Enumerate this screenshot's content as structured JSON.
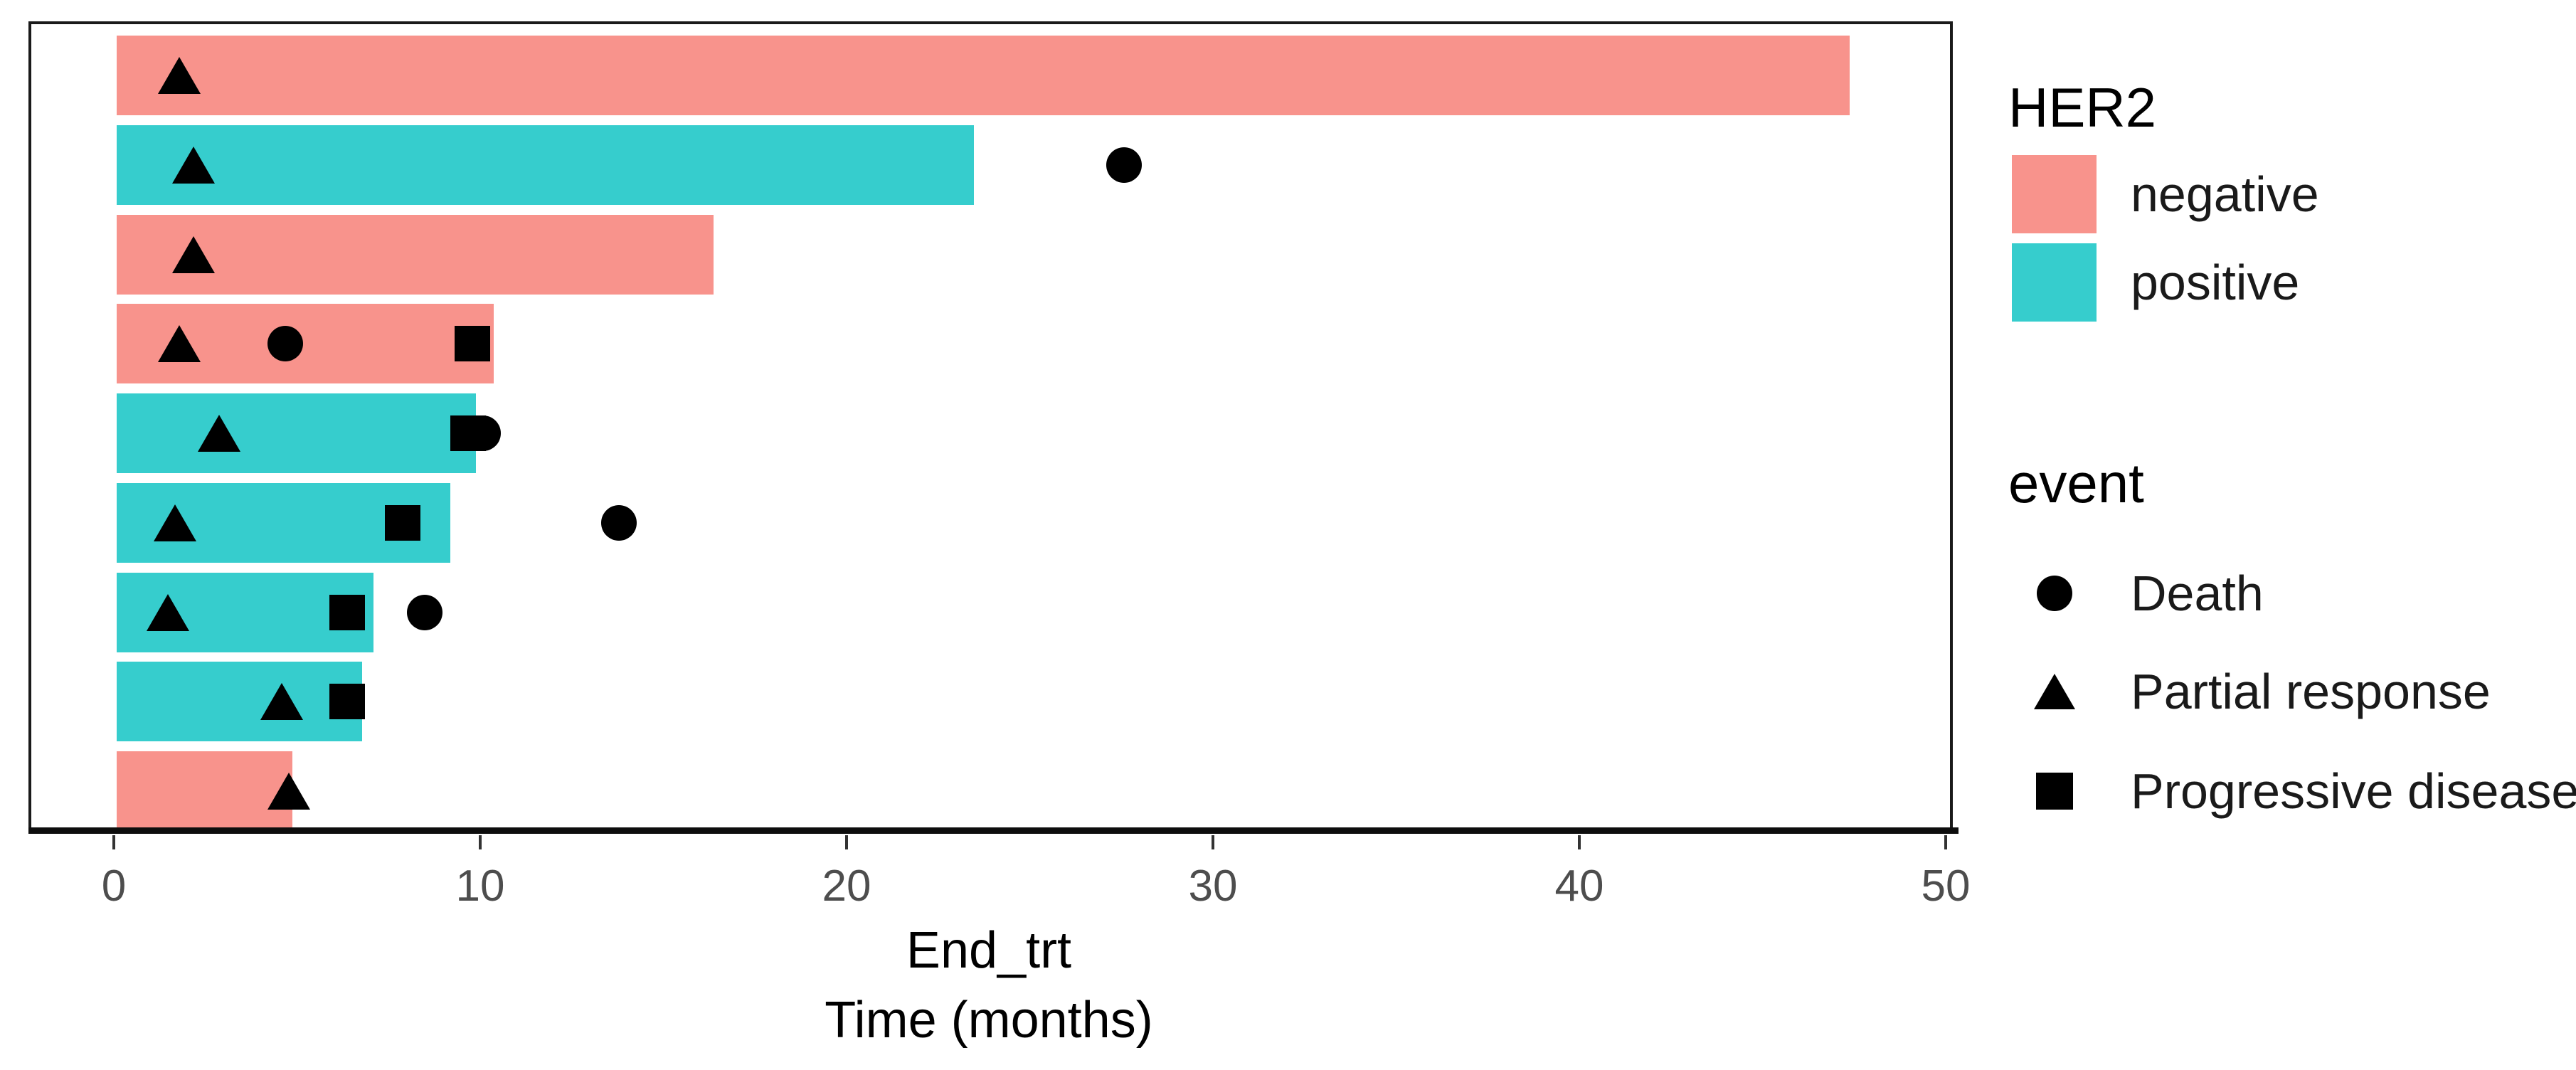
{
  "figure": {
    "x_axis": {
      "title_line1": "End_trt",
      "title_line2": "Time (months)",
      "tick_labels": [
        "0",
        "10",
        "20",
        "30",
        "40",
        "50"
      ]
    },
    "legend": {
      "her2": {
        "title": "HER2",
        "items": [
          {
            "label": "negative",
            "color": "#F8938C"
          },
          {
            "label": "positive",
            "color": "#36CDCD"
          }
        ]
      },
      "event": {
        "title": "event",
        "items": [
          {
            "label": "Death",
            "marker": "circle"
          },
          {
            "label": "Partial response",
            "marker": "triangle"
          },
          {
            "label": "Progressive disease",
            "marker": "square"
          }
        ]
      }
    }
  },
  "chart_data": {
    "type": "bar",
    "orientation": "horizontal",
    "title": "",
    "xlabel": "End_trt — Time (months)",
    "ylabel": "",
    "xlim": [
      0,
      50
    ],
    "x_ticks": [
      0,
      10,
      20,
      30,
      40,
      50
    ],
    "grid": false,
    "legend_position": "right",
    "bar_color_by": "HER2",
    "colors": {
      "negative": "#F8938C",
      "positive": "#36CDCD",
      "event_marker": "#000000"
    },
    "marker_shapes": {
      "Death": "circle",
      "Partial response": "triangle",
      "Progressive disease": "square"
    },
    "patients": [
      {
        "her2": "negative",
        "end_trt": 47.3,
        "events": [
          {
            "event": "Partial response",
            "time": 1.7
          }
        ]
      },
      {
        "her2": "positive",
        "end_trt": 23.4,
        "events": [
          {
            "event": "Partial response",
            "time": 2.1
          },
          {
            "event": "Death",
            "time": 27.5
          }
        ]
      },
      {
        "her2": "negative",
        "end_trt": 16.3,
        "events": [
          {
            "event": "Partial response",
            "time": 2.1
          }
        ]
      },
      {
        "her2": "negative",
        "end_trt": 10.3,
        "events": [
          {
            "event": "Partial response",
            "time": 1.7
          },
          {
            "event": "Death",
            "time": 4.6
          },
          {
            "event": "Progressive disease",
            "time": 9.7
          }
        ]
      },
      {
        "her2": "positive",
        "end_trt": 9.8,
        "events": [
          {
            "event": "Partial response",
            "time": 2.8
          },
          {
            "event": "Progressive disease",
            "time": 9.6
          },
          {
            "event": "Death",
            "time": 10.0
          }
        ]
      },
      {
        "her2": "positive",
        "end_trt": 9.1,
        "events": [
          {
            "event": "Partial response",
            "time": 1.6
          },
          {
            "event": "Progressive disease",
            "time": 7.8
          },
          {
            "event": "Death",
            "time": 13.7
          }
        ]
      },
      {
        "her2": "positive",
        "end_trt": 7.0,
        "events": [
          {
            "event": "Partial response",
            "time": 1.4
          },
          {
            "event": "Progressive disease",
            "time": 6.3
          },
          {
            "event": "Death",
            "time": 8.4
          }
        ]
      },
      {
        "her2": "positive",
        "end_trt": 6.7,
        "events": [
          {
            "event": "Partial response",
            "time": 4.5
          },
          {
            "event": "Progressive disease",
            "time": 6.3
          }
        ]
      },
      {
        "her2": "negative",
        "end_trt": 4.8,
        "events": [
          {
            "event": "Partial response",
            "time": 4.7
          }
        ]
      }
    ]
  }
}
